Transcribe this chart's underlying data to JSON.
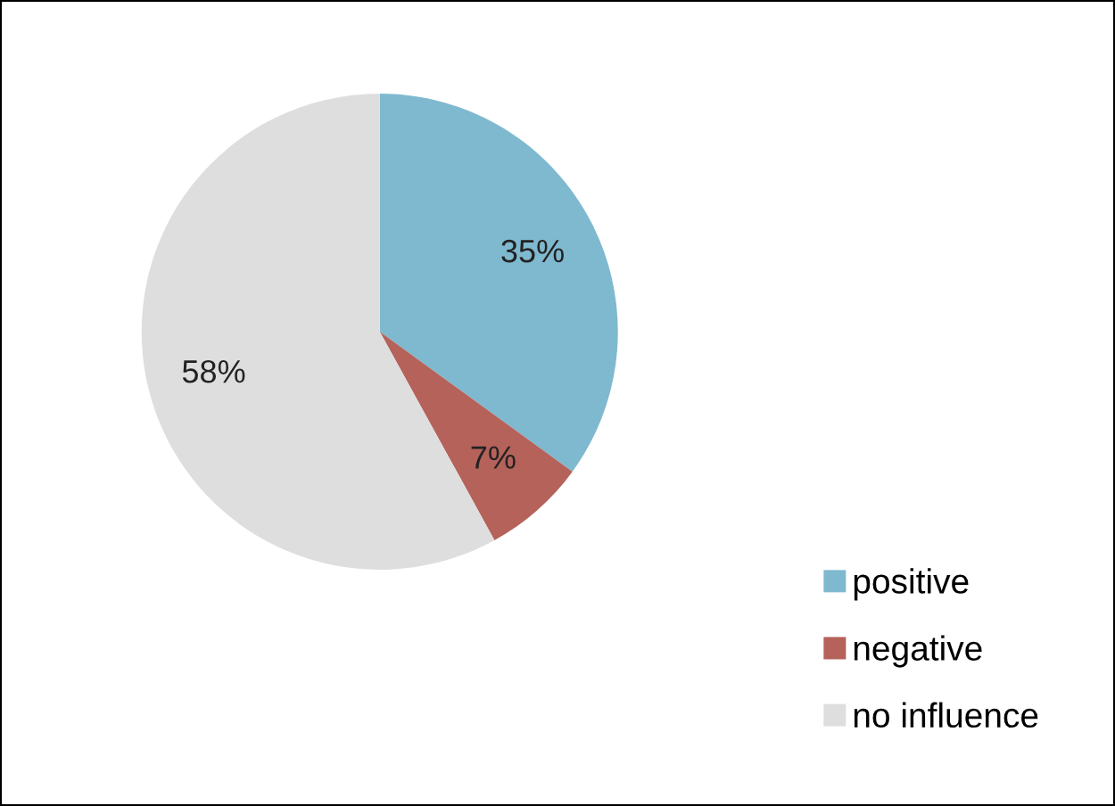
{
  "chart_data": {
    "type": "pie",
    "categories": [
      "positive",
      "negative",
      "no influence"
    ],
    "values": [
      35,
      7,
      58
    ],
    "colors": [
      "#7fb9cf",
      "#b5625b",
      "#dedede"
    ],
    "value_labels": [
      "35%",
      "7%",
      "58%"
    ],
    "legend": "bottom right"
  }
}
